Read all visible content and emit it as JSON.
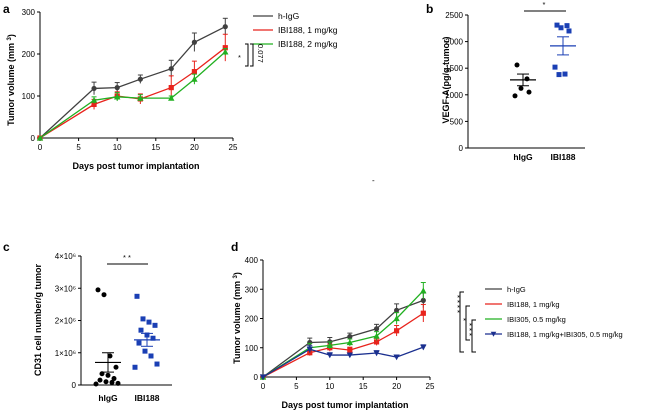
{
  "chart_data": [
    {
      "panel": "a",
      "type": "line",
      "xlabel": "Days post tumor implantation",
      "ylabel": "Tumor volume (mm 3)",
      "ylabel_main": "Tumor volume (mm ",
      "ylabel_sup": "3",
      "ylabel_tail": ")",
      "xlim": [
        0,
        25
      ],
      "ylim": [
        0,
        300
      ],
      "xticks": [
        "0",
        "5",
        "10",
        "15",
        "20",
        "25"
      ],
      "yticks": [
        "0",
        "100",
        "200",
        "300"
      ],
      "x": [
        0,
        7,
        10,
        13,
        17,
        20,
        24
      ],
      "series": [
        {
          "name": "h-IgG",
          "color": "#404040",
          "marker": "circle",
          "values": [
            0,
            118,
            120,
            140,
            165,
            228,
            265
          ],
          "err": [
            0,
            15,
            12,
            10,
            20,
            22,
            20
          ]
        },
        {
          "name": "IBI188, 1 mg/kg",
          "color": "#e8231c",
          "marker": "square",
          "values": [
            0,
            80,
            100,
            93,
            120,
            158,
            215
          ],
          "err": [
            0,
            12,
            10,
            12,
            28,
            25,
            32
          ]
        },
        {
          "name": "IBI188, 2 mg/kg",
          "color": "#21b021",
          "marker": "triangle",
          "values": [
            0,
            90,
            98,
            95,
            95,
            140,
            205
          ],
          "err": [
            0,
            8,
            10,
            8,
            5,
            12,
            8
          ]
        }
      ],
      "annotations": {
        "p_value": "0.077",
        "star": "*"
      }
    },
    {
      "panel": "b",
      "type": "scatter",
      "ylabel": "VEGF-A(pg/g tumor)",
      "ylim": [
        0,
        2500
      ],
      "yticks": [
        "0",
        "500",
        "1000",
        "1500",
        "2000",
        "2500"
      ],
      "categories": [
        "hIgG",
        "IBI188"
      ],
      "groups": [
        {
          "name": "hIgG",
          "color": "#000000",
          "marker": "circle",
          "points": [
            1560,
            1300,
            1120,
            1050,
            980
          ],
          "mean": 1280,
          "sem": 110
        },
        {
          "name": "IBI188",
          "color": "#1a3fb4",
          "marker": "square",
          "points": [
            2310,
            2300,
            2260,
            2200,
            1520,
            1390,
            1380
          ],
          "mean": 1920,
          "sem": 170
        }
      ],
      "annotations": {
        "star": "*"
      }
    },
    {
      "panel": "c",
      "type": "scatter",
      "ylabel": "CD31 cell number/g tumor",
      "ylim": [
        0,
        4000000
      ],
      "yticks": [
        "0",
        "1×10⁶",
        "2×10⁶",
        "3×10⁶",
        "4×10⁶"
      ],
      "categories": [
        "hIgG",
        "IBI188"
      ],
      "groups": [
        {
          "name": "hIgG",
          "color": "#000000",
          "marker": "circle",
          "points": [
            2950000,
            2800000,
            900000,
            550000,
            350000,
            300000,
            200000,
            150000,
            100000,
            80000,
            50000,
            30000
          ],
          "mean": 700000,
          "sem": 300000
        },
        {
          "name": "IBI188",
          "color": "#1a3fb4",
          "marker": "square",
          "points": [
            2750000,
            2050000,
            1950000,
            1850000,
            1700000,
            1550000,
            1450000,
            1300000,
            1050000,
            900000,
            650000,
            550000
          ],
          "mean": 1400000,
          "sem": 200000
        }
      ],
      "annotations": {
        "star": "* *"
      }
    },
    {
      "panel": "d",
      "type": "line",
      "xlabel": "Days post tumor implantation",
      "ylabel": "Tumor volume (mm 3)",
      "ylabel_main": "Tumor volume (mm ",
      "ylabel_sup": "3",
      "ylabel_tail": ")",
      "xlim": [
        0,
        25
      ],
      "ylim": [
        0,
        400
      ],
      "xticks": [
        "0",
        "5",
        "10",
        "15",
        "20",
        "25"
      ],
      "yticks": [
        "0",
        "100",
        "200",
        "300",
        "400"
      ],
      "x": [
        0,
        7,
        10,
        13,
        17,
        20,
        24
      ],
      "series": [
        {
          "name": "h-IgG",
          "color": "#404040",
          "marker": "circle",
          "values": [
            0,
            118,
            120,
            138,
            165,
            228,
            262
          ],
          "err": [
            0,
            15,
            15,
            12,
            15,
            22,
            25
          ]
        },
        {
          "name": "IBI188, 1 mg/kg",
          "color": "#e8231c",
          "marker": "square",
          "values": [
            0,
            83,
            100,
            92,
            120,
            158,
            218
          ],
          "err": [
            0,
            10,
            12,
            10,
            12,
            18,
            30
          ]
        },
        {
          "name": "IBI305, 0.5 mg/kg",
          "color": "#21b021",
          "marker": "triangle",
          "values": [
            0,
            100,
            108,
            118,
            140,
            200,
            295
          ],
          "err": [
            0,
            15,
            12,
            12,
            15,
            20,
            28
          ]
        },
        {
          "name": "IBI188, 1 mg/kg+IBI305, 0.5 mg/kg",
          "color": "#1a2f8f",
          "marker": "triangle-down",
          "values": [
            0,
            95,
            75,
            75,
            82,
            68,
            102
          ],
          "err": [
            0,
            12,
            8,
            6,
            8,
            5,
            8
          ]
        }
      ],
      "annotations": {
        "stars": [
          "* * * *",
          "*",
          "* * *"
        ]
      }
    }
  ],
  "panel_letters": {
    "a": "a",
    "b": "b",
    "c": "c",
    "d": "d"
  },
  "stray_mark": "-"
}
